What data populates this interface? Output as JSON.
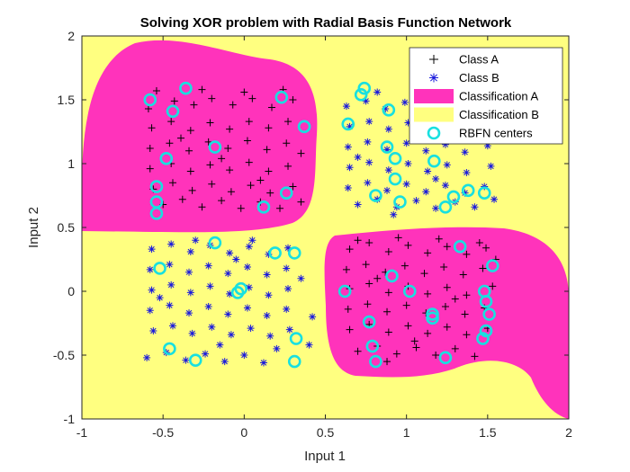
{
  "chart_data": {
    "type": "scatter",
    "title": "Solving XOR problem with Radial Basis Function Network",
    "xlabel": "Input 1",
    "ylabel": "Input 2",
    "xlim": [
      -1,
      2
    ],
    "ylim": [
      -1,
      2
    ],
    "xticks": [
      "-1",
      "-0.5",
      "0",
      "0.5",
      "1",
      "1.5",
      "2"
    ],
    "yticks": [
      "-1",
      "-0.5",
      "0",
      "0.5",
      "1",
      "1.5",
      "2"
    ],
    "legend_position": "top-right",
    "colors": {
      "class_a": "#000000",
      "class_b": "#1a1adc",
      "region_a": "#ff33bb",
      "region_b": "#ffff80",
      "centers": "#18e0e0"
    },
    "legend": [
      {
        "key": "class_a",
        "label": "Class A",
        "marker": "plus"
      },
      {
        "key": "class_b",
        "label": "Class B",
        "marker": "asterisk"
      },
      {
        "key": "region_a",
        "label": "Classification A",
        "marker": "patch"
      },
      {
        "key": "region_b",
        "label": "Classification B",
        "marker": "patch"
      },
      {
        "key": "centers",
        "label": "RBFN centers",
        "marker": "circle"
      }
    ],
    "regions": [
      {
        "class": "Classification A",
        "x": [
          -0.95,
          0.4
        ],
        "y": [
          0.55,
          1.95
        ]
      },
      {
        "class": "Classification A",
        "x": [
          0.5,
          1.95
        ],
        "y": [
          -0.85,
          0.4
        ]
      }
    ],
    "centers": [
      [
        -0.58,
        1.5
      ],
      [
        -0.36,
        1.59
      ],
      [
        -0.44,
        1.41
      ],
      [
        -0.48,
        1.04
      ],
      [
        -0.18,
        1.13
      ],
      [
        0.23,
        1.52
      ],
      [
        0.37,
        1.29
      ],
      [
        -0.54,
        0.82
      ],
      [
        -0.54,
        0.7
      ],
      [
        -0.54,
        0.61
      ],
      [
        0.26,
        0.77
      ],
      [
        0.12,
        0.66
      ],
      [
        0.74,
        1.59
      ],
      [
        0.72,
        1.54
      ],
      [
        0.64,
        1.31
      ],
      [
        0.89,
        1.42
      ],
      [
        0.88,
        1.13
      ],
      [
        0.93,
        1.04
      ],
      [
        1.17,
        1.02
      ],
      [
        0.93,
        0.88
      ],
      [
        0.81,
        0.75
      ],
      [
        0.96,
        0.7
      ],
      [
        1.38,
        0.79
      ],
      [
        1.29,
        0.74
      ],
      [
        1.48,
        0.77
      ],
      [
        1.24,
        0.66
      ],
      [
        -0.18,
        0.38
      ],
      [
        0.19,
        0.3
      ],
      [
        0.31,
        0.3
      ],
      [
        -0.52,
        0.18
      ],
      [
        -0.04,
        -0.01
      ],
      [
        -0.02,
        0.02
      ],
      [
        -0.46,
        -0.45
      ],
      [
        -0.3,
        -0.54
      ],
      [
        0.32,
        -0.37
      ],
      [
        0.31,
        -0.55
      ],
      [
        1.33,
        0.35
      ],
      [
        1.53,
        0.2
      ],
      [
        0.91,
        0.12
      ],
      [
        0.62,
        0.0
      ],
      [
        1.02,
        0.0
      ],
      [
        1.48,
        0.0
      ],
      [
        1.49,
        -0.08
      ],
      [
        1.51,
        -0.18
      ],
      [
        1.16,
        -0.18
      ],
      [
        1.16,
        -0.21
      ],
      [
        0.77,
        -0.24
      ],
      [
        1.49,
        -0.31
      ],
      [
        1.47,
        -0.37
      ],
      [
        0.79,
        -0.43
      ],
      [
        0.81,
        -0.55
      ],
      [
        1.24,
        -0.52
      ]
    ],
    "class_a": [
      [
        -0.59,
        1.43
      ],
      [
        -0.43,
        1.49
      ],
      [
        -0.31,
        1.46
      ],
      [
        -0.2,
        1.51
      ],
      [
        -0.07,
        1.46
      ],
      [
        0.05,
        1.51
      ],
      [
        0.17,
        1.44
      ],
      [
        0.3,
        1.5
      ],
      [
        -0.57,
        1.28
      ],
      [
        -0.45,
        1.33
      ],
      [
        -0.33,
        1.26
      ],
      [
        -0.21,
        1.32
      ],
      [
        -0.09,
        1.27
      ],
      [
        0.03,
        1.33
      ],
      [
        0.15,
        1.28
      ],
      [
        0.27,
        1.33
      ],
      [
        -0.58,
        1.12
      ],
      [
        -0.46,
        1.16
      ],
      [
        -0.34,
        1.1
      ],
      [
        -0.22,
        1.17
      ],
      [
        -0.1,
        1.12
      ],
      [
        0.02,
        1.18
      ],
      [
        0.14,
        1.11
      ],
      [
        0.26,
        1.16
      ],
      [
        -0.58,
        0.96
      ],
      [
        -0.45,
        1.0
      ],
      [
        -0.33,
        0.94
      ],
      [
        -0.21,
        0.99
      ],
      [
        -0.09,
        0.95
      ],
      [
        0.03,
        1.01
      ],
      [
        0.15,
        0.94
      ],
      [
        0.27,
        0.98
      ],
      [
        -0.56,
        0.8
      ],
      [
        -0.44,
        0.85
      ],
      [
        -0.32,
        0.79
      ],
      [
        -0.2,
        0.84
      ],
      [
        -0.08,
        0.78
      ],
      [
        0.04,
        0.83
      ],
      [
        0.16,
        0.77
      ],
      [
        0.3,
        0.82
      ],
      [
        -0.5,
        0.68
      ],
      [
        -0.38,
        0.72
      ],
      [
        -0.26,
        0.66
      ],
      [
        -0.14,
        0.71
      ],
      [
        -0.02,
        0.65
      ],
      [
        0.1,
        0.7
      ],
      [
        0.22,
        0.65
      ],
      [
        0.35,
        0.7
      ],
      [
        -0.54,
        1.57
      ],
      [
        -0.26,
        1.58
      ],
      [
        0.0,
        1.56
      ],
      [
        0.24,
        1.58
      ],
      [
        -0.39,
        1.2
      ],
      [
        0.1,
        0.87
      ],
      [
        0.35,
        1.08
      ],
      [
        -0.14,
        1.04
      ],
      [
        0.65,
        0.33
      ],
      [
        0.77,
        0.38
      ],
      [
        0.89,
        0.31
      ],
      [
        1.01,
        0.36
      ],
      [
        1.13,
        0.3
      ],
      [
        1.25,
        0.35
      ],
      [
        1.37,
        0.29
      ],
      [
        1.49,
        0.34
      ],
      [
        0.63,
        0.17
      ],
      [
        0.75,
        0.21
      ],
      [
        0.87,
        0.15
      ],
      [
        0.99,
        0.2
      ],
      [
        1.11,
        0.14
      ],
      [
        1.23,
        0.19
      ],
      [
        1.35,
        0.13
      ],
      [
        1.47,
        0.18
      ],
      [
        0.65,
        0.02
      ],
      [
        0.77,
        0.06
      ],
      [
        0.89,
        -0.01
      ],
      [
        1.01,
        0.04
      ],
      [
        1.13,
        -0.02
      ],
      [
        1.25,
        0.03
      ],
      [
        1.37,
        -0.03
      ],
      [
        1.53,
        0.04
      ],
      [
        0.64,
        -0.14
      ],
      [
        0.76,
        -0.1
      ],
      [
        0.88,
        -0.16
      ],
      [
        1.0,
        -0.11
      ],
      [
        1.12,
        -0.17
      ],
      [
        1.24,
        -0.12
      ],
      [
        1.36,
        -0.18
      ],
      [
        1.48,
        -0.13
      ],
      [
        0.65,
        -0.3
      ],
      [
        0.77,
        -0.26
      ],
      [
        0.89,
        -0.32
      ],
      [
        1.01,
        -0.27
      ],
      [
        1.13,
        -0.33
      ],
      [
        1.25,
        -0.28
      ],
      [
        1.37,
        -0.34
      ],
      [
        1.5,
        -0.29
      ],
      [
        0.7,
        -0.47
      ],
      [
        0.82,
        -0.43
      ],
      [
        0.94,
        -0.49
      ],
      [
        1.06,
        -0.44
      ],
      [
        1.18,
        -0.5
      ],
      [
        1.3,
        -0.45
      ],
      [
        1.42,
        -0.51
      ],
      [
        0.88,
        -0.55
      ],
      [
        0.7,
        0.4
      ],
      [
        0.95,
        0.42
      ],
      [
        1.2,
        0.41
      ],
      [
        1.45,
        0.38
      ],
      [
        1.55,
        0.25
      ],
      [
        0.82,
        0.1
      ],
      [
        1.3,
        -0.06
      ],
      [
        1.05,
        -0.39
      ]
    ],
    "class_b": [
      [
        0.63,
        1.45
      ],
      [
        0.75,
        1.49
      ],
      [
        0.87,
        1.43
      ],
      [
        0.99,
        1.48
      ],
      [
        1.11,
        1.42
      ],
      [
        1.23,
        1.47
      ],
      [
        1.35,
        1.41
      ],
      [
        1.47,
        1.46
      ],
      [
        0.65,
        1.29
      ],
      [
        0.77,
        1.33
      ],
      [
        0.89,
        1.27
      ],
      [
        1.01,
        1.32
      ],
      [
        1.13,
        1.26
      ],
      [
        1.25,
        1.31
      ],
      [
        1.37,
        1.25
      ],
      [
        1.49,
        1.3
      ],
      [
        0.64,
        1.13
      ],
      [
        0.76,
        1.17
      ],
      [
        0.88,
        1.11
      ],
      [
        1.0,
        1.16
      ],
      [
        1.12,
        1.1
      ],
      [
        1.24,
        1.15
      ],
      [
        1.36,
        1.09
      ],
      [
        1.5,
        1.14
      ],
      [
        0.65,
        0.97
      ],
      [
        0.77,
        1.01
      ],
      [
        0.89,
        0.95
      ],
      [
        1.01,
        1.0
      ],
      [
        1.13,
        0.94
      ],
      [
        1.25,
        0.99
      ],
      [
        1.37,
        0.93
      ],
      [
        1.52,
        0.98
      ],
      [
        0.64,
        0.81
      ],
      [
        0.76,
        0.85
      ],
      [
        0.88,
        0.79
      ],
      [
        1.0,
        0.84
      ],
      [
        1.12,
        0.78
      ],
      [
        1.24,
        0.83
      ],
      [
        1.36,
        0.77
      ],
      [
        1.48,
        0.82
      ],
      [
        0.7,
        0.68
      ],
      [
        0.82,
        0.72
      ],
      [
        0.94,
        0.66
      ],
      [
        1.06,
        0.71
      ],
      [
        1.18,
        0.65
      ],
      [
        1.3,
        0.7
      ],
      [
        1.42,
        0.66
      ],
      [
        1.54,
        0.72
      ],
      [
        0.82,
        1.56
      ],
      [
        1.05,
        1.55
      ],
      [
        1.3,
        1.57
      ],
      [
        1.5,
        1.52
      ],
      [
        0.7,
        1.05
      ],
      [
        1.45,
        1.2
      ],
      [
        1.18,
        0.88
      ],
      [
        0.92,
        0.6
      ],
      [
        -0.57,
        0.33
      ],
      [
        -0.45,
        0.37
      ],
      [
        -0.33,
        0.31
      ],
      [
        -0.21,
        0.36
      ],
      [
        -0.09,
        0.3
      ],
      [
        0.03,
        0.35
      ],
      [
        0.15,
        0.29
      ],
      [
        0.27,
        0.34
      ],
      [
        -0.58,
        0.17
      ],
      [
        -0.46,
        0.21
      ],
      [
        -0.34,
        0.15
      ],
      [
        -0.22,
        0.2
      ],
      [
        -0.1,
        0.14
      ],
      [
        0.02,
        0.19
      ],
      [
        0.14,
        0.13
      ],
      [
        0.26,
        0.18
      ],
      [
        -0.57,
        0.01
      ],
      [
        -0.45,
        0.05
      ],
      [
        -0.33,
        -0.01
      ],
      [
        -0.21,
        0.04
      ],
      [
        -0.09,
        -0.02
      ],
      [
        0.03,
        0.03
      ],
      [
        0.15,
        -0.03
      ],
      [
        0.27,
        0.02
      ],
      [
        -0.58,
        -0.15
      ],
      [
        -0.46,
        -0.11
      ],
      [
        -0.34,
        -0.17
      ],
      [
        -0.22,
        -0.12
      ],
      [
        -0.1,
        -0.18
      ],
      [
        0.02,
        -0.13
      ],
      [
        0.14,
        -0.19
      ],
      [
        0.26,
        -0.14
      ],
      [
        -0.56,
        -0.31
      ],
      [
        -0.44,
        -0.27
      ],
      [
        -0.32,
        -0.33
      ],
      [
        -0.2,
        -0.28
      ],
      [
        -0.08,
        -0.34
      ],
      [
        0.04,
        -0.29
      ],
      [
        0.16,
        -0.35
      ],
      [
        0.28,
        -0.3
      ],
      [
        -0.6,
        -0.52
      ],
      [
        -0.48,
        -0.48
      ],
      [
        -0.36,
        -0.54
      ],
      [
        -0.24,
        -0.49
      ],
      [
        -0.12,
        -0.55
      ],
      [
        0.0,
        -0.5
      ],
      [
        0.12,
        -0.56
      ],
      [
        0.4,
        -0.42
      ],
      [
        -0.3,
        0.4
      ],
      [
        0.05,
        0.4
      ],
      [
        0.35,
        0.1
      ],
      [
        -0.52,
        -0.05
      ],
      [
        -0.15,
        -0.42
      ],
      [
        0.2,
        -0.45
      ],
      [
        0.42,
        -0.2
      ],
      [
        -0.05,
        0.25
      ]
    ]
  }
}
